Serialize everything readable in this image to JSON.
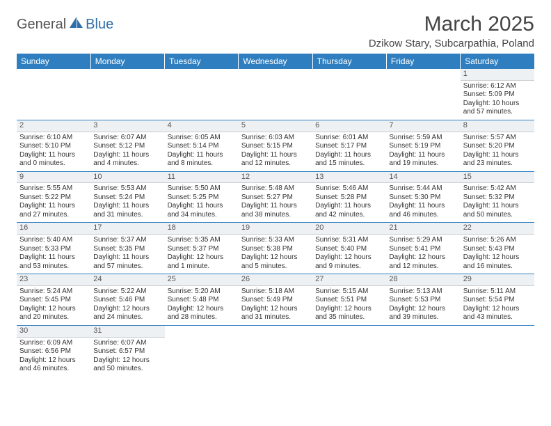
{
  "logo": {
    "text1": "General",
    "text2": "Blue"
  },
  "title": "March 2025",
  "location": "Dzikow Stary, Subcarpathia, Poland",
  "colors": {
    "header_bg": "#2f7fc0",
    "header_text": "#ffffff",
    "grid_line": "#2f7fc0",
    "daynum_bg": "#eef1f4",
    "logo_blue": "#2f6fa8",
    "logo_gray": "#555555",
    "text": "#333333",
    "background": "#ffffff"
  },
  "typography": {
    "title_fontsize": 30,
    "location_fontsize": 15,
    "dayheader_fontsize": 12,
    "daynum_fontsize": 11,
    "cell_fontsize": 10,
    "font_family": "Arial"
  },
  "day_headers": [
    "Sunday",
    "Monday",
    "Tuesday",
    "Wednesday",
    "Thursday",
    "Friday",
    "Saturday"
  ],
  "weeks": [
    [
      null,
      null,
      null,
      null,
      null,
      null,
      {
        "n": "1",
        "sr": "Sunrise: 6:12 AM",
        "ss": "Sunset: 5:09 PM",
        "dl": "Daylight: 10 hours and 57 minutes."
      }
    ],
    [
      {
        "n": "2",
        "sr": "Sunrise: 6:10 AM",
        "ss": "Sunset: 5:10 PM",
        "dl": "Daylight: 11 hours and 0 minutes."
      },
      {
        "n": "3",
        "sr": "Sunrise: 6:07 AM",
        "ss": "Sunset: 5:12 PM",
        "dl": "Daylight: 11 hours and 4 minutes."
      },
      {
        "n": "4",
        "sr": "Sunrise: 6:05 AM",
        "ss": "Sunset: 5:14 PM",
        "dl": "Daylight: 11 hours and 8 minutes."
      },
      {
        "n": "5",
        "sr": "Sunrise: 6:03 AM",
        "ss": "Sunset: 5:15 PM",
        "dl": "Daylight: 11 hours and 12 minutes."
      },
      {
        "n": "6",
        "sr": "Sunrise: 6:01 AM",
        "ss": "Sunset: 5:17 PM",
        "dl": "Daylight: 11 hours and 15 minutes."
      },
      {
        "n": "7",
        "sr": "Sunrise: 5:59 AM",
        "ss": "Sunset: 5:19 PM",
        "dl": "Daylight: 11 hours and 19 minutes."
      },
      {
        "n": "8",
        "sr": "Sunrise: 5:57 AM",
        "ss": "Sunset: 5:20 PM",
        "dl": "Daylight: 11 hours and 23 minutes."
      }
    ],
    [
      {
        "n": "9",
        "sr": "Sunrise: 5:55 AM",
        "ss": "Sunset: 5:22 PM",
        "dl": "Daylight: 11 hours and 27 minutes."
      },
      {
        "n": "10",
        "sr": "Sunrise: 5:53 AM",
        "ss": "Sunset: 5:24 PM",
        "dl": "Daylight: 11 hours and 31 minutes."
      },
      {
        "n": "11",
        "sr": "Sunrise: 5:50 AM",
        "ss": "Sunset: 5:25 PM",
        "dl": "Daylight: 11 hours and 34 minutes."
      },
      {
        "n": "12",
        "sr": "Sunrise: 5:48 AM",
        "ss": "Sunset: 5:27 PM",
        "dl": "Daylight: 11 hours and 38 minutes."
      },
      {
        "n": "13",
        "sr": "Sunrise: 5:46 AM",
        "ss": "Sunset: 5:28 PM",
        "dl": "Daylight: 11 hours and 42 minutes."
      },
      {
        "n": "14",
        "sr": "Sunrise: 5:44 AM",
        "ss": "Sunset: 5:30 PM",
        "dl": "Daylight: 11 hours and 46 minutes."
      },
      {
        "n": "15",
        "sr": "Sunrise: 5:42 AM",
        "ss": "Sunset: 5:32 PM",
        "dl": "Daylight: 11 hours and 50 minutes."
      }
    ],
    [
      {
        "n": "16",
        "sr": "Sunrise: 5:40 AM",
        "ss": "Sunset: 5:33 PM",
        "dl": "Daylight: 11 hours and 53 minutes."
      },
      {
        "n": "17",
        "sr": "Sunrise: 5:37 AM",
        "ss": "Sunset: 5:35 PM",
        "dl": "Daylight: 11 hours and 57 minutes."
      },
      {
        "n": "18",
        "sr": "Sunrise: 5:35 AM",
        "ss": "Sunset: 5:37 PM",
        "dl": "Daylight: 12 hours and 1 minute."
      },
      {
        "n": "19",
        "sr": "Sunrise: 5:33 AM",
        "ss": "Sunset: 5:38 PM",
        "dl": "Daylight: 12 hours and 5 minutes."
      },
      {
        "n": "20",
        "sr": "Sunrise: 5:31 AM",
        "ss": "Sunset: 5:40 PM",
        "dl": "Daylight: 12 hours and 9 minutes."
      },
      {
        "n": "21",
        "sr": "Sunrise: 5:29 AM",
        "ss": "Sunset: 5:41 PM",
        "dl": "Daylight: 12 hours and 12 minutes."
      },
      {
        "n": "22",
        "sr": "Sunrise: 5:26 AM",
        "ss": "Sunset: 5:43 PM",
        "dl": "Daylight: 12 hours and 16 minutes."
      }
    ],
    [
      {
        "n": "23",
        "sr": "Sunrise: 5:24 AM",
        "ss": "Sunset: 5:45 PM",
        "dl": "Daylight: 12 hours and 20 minutes."
      },
      {
        "n": "24",
        "sr": "Sunrise: 5:22 AM",
        "ss": "Sunset: 5:46 PM",
        "dl": "Daylight: 12 hours and 24 minutes."
      },
      {
        "n": "25",
        "sr": "Sunrise: 5:20 AM",
        "ss": "Sunset: 5:48 PM",
        "dl": "Daylight: 12 hours and 28 minutes."
      },
      {
        "n": "26",
        "sr": "Sunrise: 5:18 AM",
        "ss": "Sunset: 5:49 PM",
        "dl": "Daylight: 12 hours and 31 minutes."
      },
      {
        "n": "27",
        "sr": "Sunrise: 5:15 AM",
        "ss": "Sunset: 5:51 PM",
        "dl": "Daylight: 12 hours and 35 minutes."
      },
      {
        "n": "28",
        "sr": "Sunrise: 5:13 AM",
        "ss": "Sunset: 5:53 PM",
        "dl": "Daylight: 12 hours and 39 minutes."
      },
      {
        "n": "29",
        "sr": "Sunrise: 5:11 AM",
        "ss": "Sunset: 5:54 PM",
        "dl": "Daylight: 12 hours and 43 minutes."
      }
    ],
    [
      {
        "n": "30",
        "sr": "Sunrise: 6:09 AM",
        "ss": "Sunset: 6:56 PM",
        "dl": "Daylight: 12 hours and 46 minutes."
      },
      {
        "n": "31",
        "sr": "Sunrise: 6:07 AM",
        "ss": "Sunset: 6:57 PM",
        "dl": "Daylight: 12 hours and 50 minutes."
      },
      null,
      null,
      null,
      null,
      null
    ]
  ]
}
